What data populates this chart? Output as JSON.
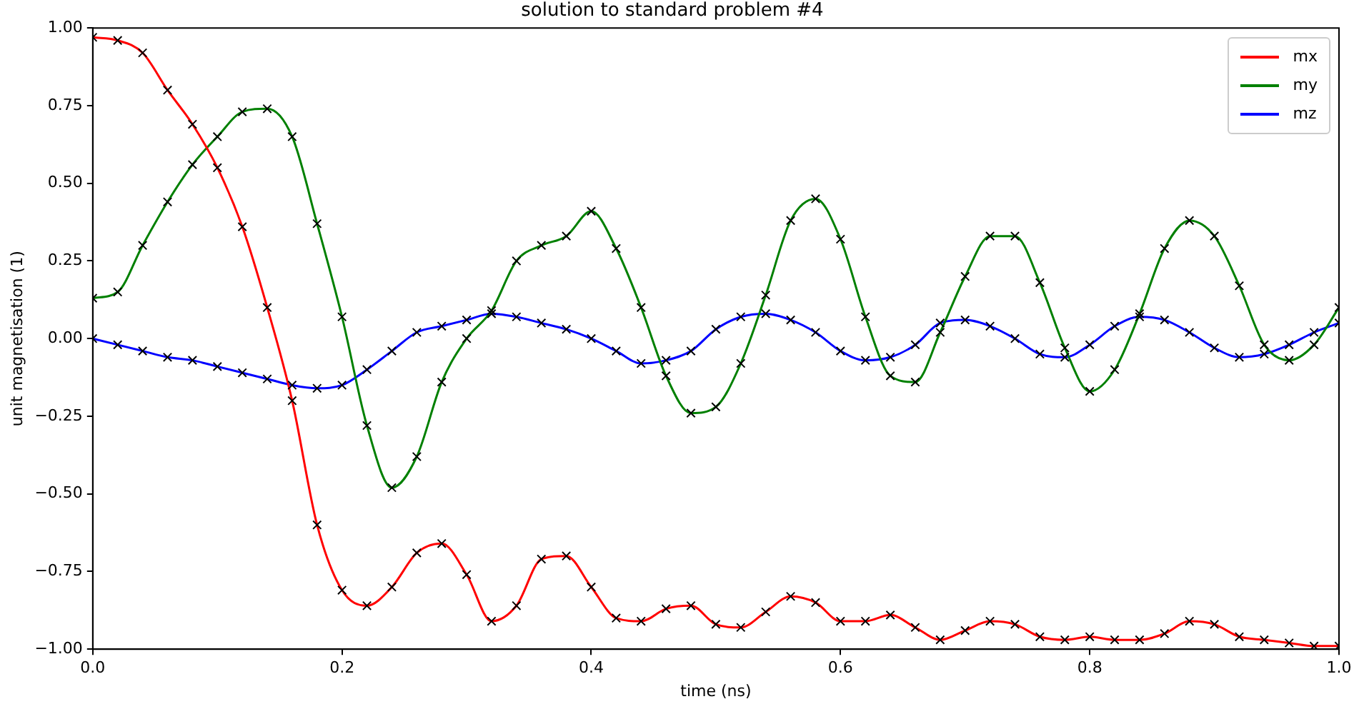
{
  "chart_data": {
    "type": "line",
    "title": "solution to standard problem #4",
    "xlabel": "time (ns)",
    "ylabel": "unit magnetisation (1)",
    "x": [
      0,
      0.02,
      0.04,
      0.06,
      0.08,
      0.1,
      0.12,
      0.14,
      0.16,
      0.18,
      0.2,
      0.22,
      0.24,
      0.26,
      0.28,
      0.3,
      0.32,
      0.34,
      0.36,
      0.38,
      0.4,
      0.42,
      0.44,
      0.46,
      0.48,
      0.5,
      0.52,
      0.54,
      0.56,
      0.58,
      0.6,
      0.62,
      0.64,
      0.66,
      0.68,
      0.7,
      0.72,
      0.74,
      0.76,
      0.78,
      0.8,
      0.82,
      0.84,
      0.86,
      0.88,
      0.9,
      0.92,
      0.94,
      0.96,
      0.98,
      1.0
    ],
    "series": [
      {
        "name": "mx",
        "color": "#ff0000",
        "values": [
          0.97,
          0.96,
          0.92,
          0.8,
          0.69,
          0.55,
          0.36,
          0.1,
          -0.2,
          -0.6,
          -0.81,
          -0.86,
          -0.8,
          -0.69,
          -0.66,
          -0.76,
          -0.91,
          -0.86,
          -0.71,
          -0.7,
          -0.8,
          -0.9,
          -0.91,
          -0.87,
          -0.86,
          -0.92,
          -0.93,
          -0.88,
          -0.83,
          -0.85,
          -0.91,
          -0.91,
          -0.89,
          -0.93,
          -0.97,
          -0.94,
          -0.91,
          -0.92,
          -0.96,
          -0.97,
          -0.96,
          -0.97,
          -0.97,
          -0.95,
          -0.91,
          -0.92,
          -0.96,
          -0.97,
          -0.98,
          -0.99,
          -0.99
        ]
      },
      {
        "name": "my",
        "color": "#008000",
        "values": [
          0.13,
          0.15,
          0.3,
          0.44,
          0.56,
          0.65,
          0.73,
          0.74,
          0.65,
          0.37,
          0.07,
          -0.28,
          -0.48,
          -0.38,
          -0.14,
          0.0,
          0.09,
          0.25,
          0.3,
          0.33,
          0.41,
          0.29,
          0.1,
          -0.12,
          -0.24,
          -0.22,
          -0.08,
          0.14,
          0.38,
          0.45,
          0.32,
          0.07,
          -0.12,
          -0.14,
          0.02,
          0.2,
          0.33,
          0.33,
          0.18,
          -0.03,
          -0.17,
          -0.1,
          0.08,
          0.29,
          0.38,
          0.33,
          0.17,
          -0.02,
          -0.07,
          -0.02,
          0.1
        ]
      },
      {
        "name": "mz",
        "color": "#0000ff",
        "values": [
          0.0,
          -0.02,
          -0.04,
          -0.06,
          -0.07,
          -0.09,
          -0.11,
          -0.13,
          -0.15,
          -0.16,
          -0.15,
          -0.1,
          -0.04,
          0.02,
          0.04,
          0.06,
          0.08,
          0.07,
          0.05,
          0.03,
          0.0,
          -0.04,
          -0.08,
          -0.07,
          -0.04,
          0.03,
          0.07,
          0.08,
          0.06,
          0.02,
          -0.04,
          -0.07,
          -0.06,
          -0.02,
          0.05,
          0.06,
          0.04,
          0.0,
          -0.05,
          -0.06,
          -0.02,
          0.04,
          0.07,
          0.06,
          0.02,
          -0.03,
          -0.06,
          -0.05,
          -0.02,
          0.02,
          0.05
        ]
      },
      {
        "type": "scatter",
        "color": "#000000",
        "marker": "cross",
        "x": [
          0,
          0.02,
          0.04,
          0.06,
          0.08,
          0.1,
          0.12,
          0.14,
          0.16,
          0.18,
          0.2,
          0.22,
          0.24,
          0.26,
          0.28,
          0.3,
          0.32,
          0.34,
          0.36,
          0.38,
          0.4,
          0.42,
          0.44,
          0.46,
          0.48,
          0.5,
          0.52,
          0.54,
          0.56,
          0.58,
          0.6,
          0.62,
          0.64,
          0.66,
          0.68,
          0.7,
          0.72,
          0.74,
          0.76,
          0.78,
          0.8,
          0.82,
          0.84,
          0.86,
          0.88,
          0.9,
          0.92,
          0.94,
          0.96,
          0.98,
          1.0,
          0,
          0.02,
          0.04,
          0.06,
          0.08,
          0.1,
          0.12,
          0.14,
          0.16,
          0.18,
          0.2,
          0.22,
          0.24,
          0.26,
          0.28,
          0.3,
          0.32,
          0.34,
          0.36,
          0.38,
          0.4,
          0.42,
          0.44,
          0.46,
          0.48,
          0.5,
          0.52,
          0.54,
          0.56,
          0.58,
          0.6,
          0.62,
          0.64,
          0.66,
          0.68,
          0.7,
          0.72,
          0.74,
          0.76,
          0.78,
          0.8,
          0.82,
          0.84,
          0.86,
          0.88,
          0.9,
          0.92,
          0.94,
          0.96,
          0.98,
          1.0,
          0,
          0.02,
          0.04,
          0.06,
          0.08,
          0.1,
          0.12,
          0.14,
          0.16,
          0.18,
          0.2,
          0.22,
          0.24,
          0.26,
          0.28,
          0.3,
          0.32,
          0.34,
          0.36,
          0.38,
          0.4,
          0.42,
          0.44,
          0.46,
          0.48,
          0.5,
          0.52,
          0.54,
          0.56,
          0.58,
          0.6,
          0.62,
          0.64,
          0.66,
          0.68,
          0.7,
          0.72,
          0.74,
          0.76,
          0.78,
          0.8,
          0.82,
          0.84,
          0.86,
          0.88,
          0.9,
          0.92,
          0.94,
          0.96,
          0.98,
          1.0
        ],
        "values": [
          0.97,
          0.96,
          0.92,
          0.8,
          0.69,
          0.55,
          0.36,
          0.1,
          -0.2,
          -0.6,
          -0.81,
          -0.86,
          -0.8,
          -0.69,
          -0.66,
          -0.76,
          -0.91,
          -0.86,
          -0.71,
          -0.7,
          -0.8,
          -0.9,
          -0.91,
          -0.87,
          -0.86,
          -0.92,
          -0.93,
          -0.88,
          -0.83,
          -0.85,
          -0.91,
          -0.91,
          -0.89,
          -0.93,
          -0.97,
          -0.94,
          -0.91,
          -0.92,
          -0.96,
          -0.97,
          -0.96,
          -0.97,
          -0.97,
          -0.95,
          -0.91,
          -0.92,
          -0.96,
          -0.97,
          -0.98,
          -0.99,
          -0.99,
          0.13,
          0.15,
          0.3,
          0.44,
          0.56,
          0.65,
          0.73,
          0.74,
          0.65,
          0.37,
          0.07,
          -0.28,
          -0.48,
          -0.38,
          -0.14,
          0.0,
          0.09,
          0.25,
          0.3,
          0.33,
          0.41,
          0.29,
          0.1,
          -0.12,
          -0.24,
          -0.22,
          -0.08,
          0.14,
          0.38,
          0.45,
          0.32,
          0.07,
          -0.12,
          -0.14,
          0.02,
          0.2,
          0.33,
          0.33,
          0.18,
          -0.03,
          -0.17,
          -0.1,
          0.08,
          0.29,
          0.38,
          0.33,
          0.17,
          -0.02,
          -0.07,
          -0.02,
          0.1,
          0.0,
          -0.02,
          -0.04,
          -0.06,
          -0.07,
          -0.09,
          -0.11,
          -0.13,
          -0.15,
          -0.16,
          -0.15,
          -0.1,
          -0.04,
          0.02,
          0.04,
          0.06,
          0.08,
          0.07,
          0.05,
          0.03,
          0.0,
          -0.04,
          -0.08,
          -0.07,
          -0.04,
          0.03,
          0.07,
          0.08,
          0.06,
          0.02,
          -0.04,
          -0.07,
          -0.06,
          -0.02,
          0.05,
          0.06,
          0.04,
          0.0,
          -0.05,
          -0.06,
          -0.02,
          0.04,
          0.07,
          0.06,
          0.02,
          -0.03,
          -0.06,
          -0.05,
          -0.02,
          0.02,
          0.05
        ]
      }
    ],
    "xlim": [
      0,
      1
    ],
    "xticks": [
      {
        "value": 0,
        "label": "0.0"
      },
      {
        "value": 0.2,
        "label": "0.2"
      },
      {
        "value": 0.4,
        "label": "0.4"
      },
      {
        "value": 0.6,
        "label": "0.6"
      },
      {
        "value": 0.8,
        "label": "0.8"
      },
      {
        "value": 1,
        "label": "1.0"
      }
    ],
    "ylim": [
      -1,
      1
    ],
    "yticks": [
      {
        "value": -1,
        "label": "−1.00"
      },
      {
        "value": -0.75,
        "label": "−0.75"
      },
      {
        "value": -0.5,
        "label": "−0.50"
      },
      {
        "value": -0.25,
        "label": "−0.25"
      },
      {
        "value": 0,
        "label": "0.00"
      },
      {
        "value": 0.25,
        "label": "0.25"
      },
      {
        "value": 0.5,
        "label": "0.50"
      },
      {
        "value": 0.75,
        "label": "0.75"
      },
      {
        "value": 1,
        "label": "1.00"
      }
    ],
    "grid": false,
    "legend": "top right"
  }
}
